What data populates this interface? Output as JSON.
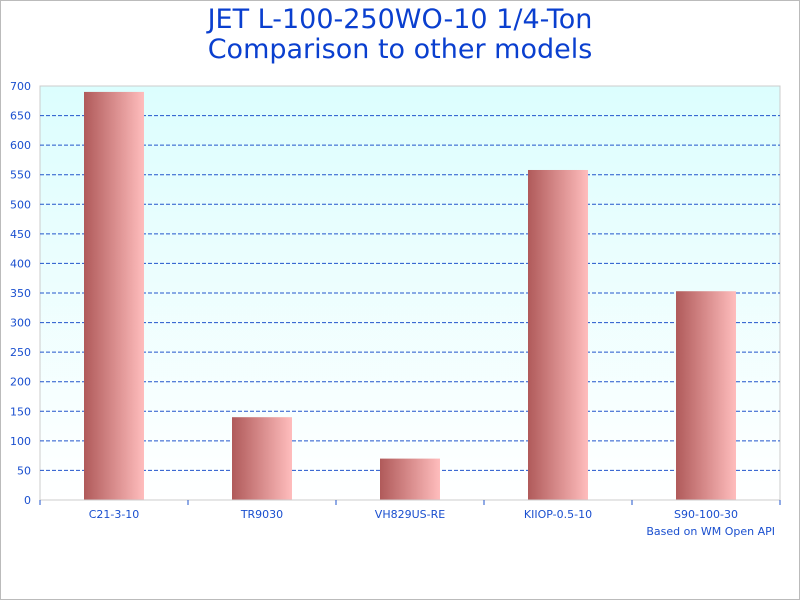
{
  "chart_data": {
    "type": "bar",
    "title": [
      "JET L-100-250WO-10 1/4-Ton",
      "Comparison to other models"
    ],
    "categories": [
      "C21-3-10",
      "TR9030",
      "VH829US-RE",
      "KIIOP-0.5-10",
      "S90-100-30"
    ],
    "values": [
      690,
      140,
      70,
      558,
      353
    ],
    "xlabel": "",
    "ylabel": "",
    "ylim": [
      0,
      700
    ],
    "yticks": [
      0,
      50,
      100,
      150,
      200,
      250,
      300,
      350,
      400,
      450,
      500,
      550,
      600,
      650,
      700
    ],
    "grid": true,
    "footnote": "Based on WM Open API",
    "colors": {
      "title": "#0a3fcf",
      "bar_dark": "#b05a5a",
      "bar_light": "#ffbdbd",
      "grid": "#2255cc",
      "plot_top": "#dcfefe",
      "plot_bottom": "#ffffff"
    }
  }
}
